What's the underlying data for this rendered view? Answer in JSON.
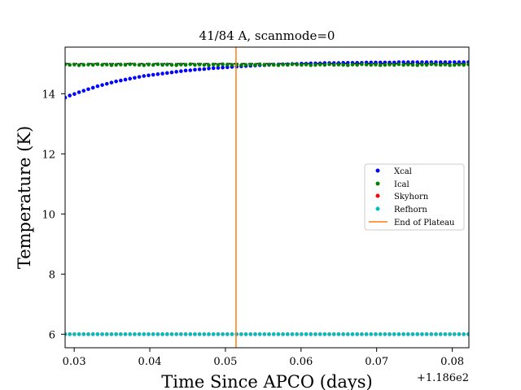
{
  "chart_data": {
    "type": "scatter",
    "title": "41/84 A, scanmode=0",
    "xlabel": "Time Since APCO (days)",
    "ylabel": "Temperature (K)",
    "x_offset_label": "+1.186e2",
    "xlim": [
      118.6288,
      118.6822
    ],
    "ylim": [
      5.55,
      15.55
    ],
    "x_ticks": [
      118.63,
      118.64,
      118.65,
      118.66,
      118.67,
      118.68
    ],
    "x_tick_labels": [
      "0.03",
      "0.04",
      "0.05",
      "0.06",
      "0.07",
      "0.08"
    ],
    "y_ticks": [
      6,
      8,
      10,
      12,
      14
    ],
    "y_tick_labels": [
      "6",
      "8",
      "10",
      "12",
      "14"
    ],
    "legend_position": "center-right",
    "reference_line": {
      "y": 15.0,
      "style": "dashed",
      "color": "#000000"
    },
    "end_of_plateau_x": 118.6514,
    "series": [
      {
        "name": "Xcal",
        "color": "#0000ff",
        "x_start": 118.6288,
        "x_step": 0.000613,
        "y": [
          13.87,
          13.94,
          13.99,
          14.05,
          14.1,
          14.15,
          14.2,
          14.25,
          14.29,
          14.33,
          14.37,
          14.41,
          14.44,
          14.47,
          14.5,
          14.53,
          14.56,
          14.59,
          14.61,
          14.63,
          14.65,
          14.67,
          14.69,
          14.71,
          14.73,
          14.75,
          14.77,
          14.78,
          14.8,
          14.81,
          14.82,
          14.84,
          14.85,
          14.86,
          14.87,
          14.88,
          14.89,
          14.9,
          14.91,
          14.92,
          14.93,
          14.94,
          14.95,
          14.95,
          14.96,
          14.97,
          14.97,
          14.98,
          14.98,
          14.99,
          14.99,
          15.0,
          15.0,
          15.01,
          15.01,
          15.01,
          15.02,
          15.02,
          15.02,
          15.02,
          15.03,
          15.03,
          15.03,
          15.03,
          15.03,
          15.04,
          15.04,
          15.04,
          15.04,
          15.04,
          15.04,
          15.04,
          15.05,
          15.05,
          15.05,
          15.05,
          15.05,
          15.05,
          15.05,
          15.05,
          15.05,
          15.05,
          15.05,
          15.05,
          15.05,
          15.05,
          15.05,
          15.05
        ]
      },
      {
        "name": "Ical",
        "color": "#008000",
        "x_start": 118.6288,
        "x_step": 0.000613,
        "y": [
          14.98,
          14.96,
          14.97,
          14.95,
          14.96,
          14.97,
          14.96,
          14.98,
          14.96,
          14.97,
          14.95,
          14.96,
          14.97,
          14.96,
          14.98,
          14.97,
          14.96,
          14.95,
          14.97,
          14.96,
          14.98,
          14.96,
          14.97,
          14.96,
          14.95,
          14.97,
          14.96,
          14.98,
          14.96,
          14.97,
          14.96,
          14.95,
          14.97,
          14.96,
          14.98,
          14.97,
          14.96,
          14.97,
          14.95,
          14.96,
          14.97,
          14.96,
          14.98,
          14.96,
          14.97,
          14.96,
          14.95,
          14.97,
          14.96,
          14.98,
          14.97,
          14.96,
          14.97,
          14.95,
          14.96,
          14.97,
          14.96,
          14.98,
          14.96,
          14.97,
          14.96,
          14.95,
          14.97,
          14.96,
          14.98,
          14.97,
          14.96,
          14.97,
          14.95,
          14.96,
          14.97,
          14.96,
          14.98,
          14.96,
          14.97,
          14.96,
          14.95,
          14.97,
          14.96,
          14.98,
          14.97,
          14.96,
          14.97,
          14.95,
          14.96,
          14.97,
          14.96,
          14.98
        ]
      },
      {
        "name": "Skyhorn",
        "color": "#ff0000",
        "x_start": 118.6288,
        "x_step": 0.000613,
        "y": [
          6.0,
          6.0,
          6.0,
          6.0,
          6.0,
          6.0,
          6.0,
          6.0,
          6.0,
          6.0,
          6.0,
          6.0,
          6.0,
          6.0,
          6.0,
          6.0,
          6.0,
          6.0,
          6.0,
          6.0,
          6.0,
          6.0,
          6.0,
          6.0,
          6.0,
          6.0,
          6.0,
          6.0,
          6.0,
          6.0,
          6.0,
          6.0,
          6.0,
          6.0,
          6.0,
          6.0,
          6.0,
          6.0,
          6.0,
          6.0,
          6.0,
          6.0,
          6.0,
          6.0,
          6.0,
          6.0,
          6.0,
          6.0,
          6.0,
          6.0,
          6.0,
          6.0,
          6.0,
          6.0,
          6.0,
          6.0,
          6.0,
          6.0,
          6.0,
          6.0,
          6.0,
          6.0,
          6.0,
          6.0,
          6.0,
          6.0,
          6.0,
          6.0,
          6.0,
          6.0,
          6.0,
          6.0,
          6.0,
          6.0,
          6.0,
          6.0,
          6.0,
          6.0,
          6.0,
          6.0,
          6.0,
          6.0,
          6.0,
          6.0,
          6.0,
          6.0,
          6.0,
          6.0
        ]
      },
      {
        "name": "Refhorn",
        "color": "#00bfbf",
        "x_start": 118.6288,
        "x_step": 0.000613,
        "y": [
          6.0,
          6.0,
          6.0,
          6.0,
          6.0,
          6.0,
          6.0,
          6.0,
          6.0,
          6.0,
          6.0,
          6.0,
          6.0,
          6.0,
          6.0,
          6.0,
          6.0,
          6.0,
          6.0,
          6.0,
          6.0,
          6.0,
          6.0,
          6.0,
          6.0,
          6.0,
          6.0,
          6.0,
          6.0,
          6.0,
          6.0,
          6.0,
          6.0,
          6.0,
          6.0,
          6.0,
          6.0,
          6.0,
          6.0,
          6.0,
          6.0,
          6.0,
          6.0,
          6.0,
          6.0,
          6.0,
          6.0,
          6.0,
          6.0,
          6.0,
          6.0,
          6.0,
          6.0,
          6.0,
          6.0,
          6.0,
          6.0,
          6.0,
          6.0,
          6.0,
          6.0,
          6.0,
          6.0,
          6.0,
          6.0,
          6.0,
          6.0,
          6.0,
          6.0,
          6.0,
          6.0,
          6.0,
          6.0,
          6.0,
          6.0,
          6.0,
          6.0,
          6.0,
          6.0,
          6.0,
          6.0,
          6.0,
          6.0,
          6.0,
          6.0,
          6.0,
          6.0,
          6.0
        ]
      }
    ],
    "end_line": {
      "name": "End of Plateau",
      "color": "#ff7f0e"
    }
  }
}
